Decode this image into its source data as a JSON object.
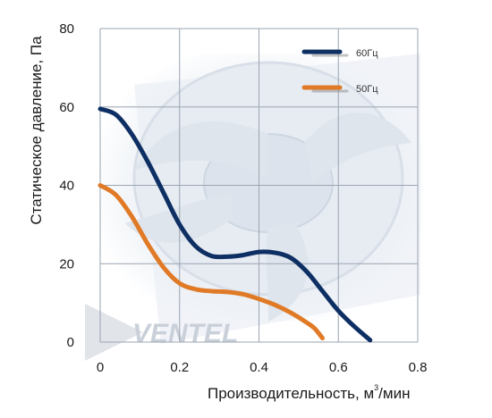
{
  "chart_data": {
    "type": "line",
    "xlabel": "Производительность, м",
    "xlabel_unit_sup": "3",
    "xlabel_suffix": "/мин",
    "ylabel": "Статическое давление, Па",
    "xlim": [
      0,
      0.8
    ],
    "ylim": [
      0,
      80
    ],
    "x_ticks": [
      {
        "value": 0,
        "label": "0"
      },
      {
        "value": 0.2,
        "label": "0.2"
      },
      {
        "value": 0.4,
        "label": "0.4"
      },
      {
        "value": 0.6,
        "label": "0.6"
      },
      {
        "value": 0.8,
        "label": "0.8"
      }
    ],
    "y_ticks": [
      {
        "value": 0,
        "label": "0"
      },
      {
        "value": 20,
        "label": "20"
      },
      {
        "value": 40,
        "label": "40"
      },
      {
        "value": 60,
        "label": "60"
      },
      {
        "value": 80,
        "label": "80"
      }
    ],
    "grid": true,
    "legend_position": "top-right",
    "series": [
      {
        "name": "60Гц",
        "color": "#0d2f63",
        "points": [
          [
            0,
            59.5
          ],
          [
            0.04,
            58
          ],
          [
            0.08,
            53
          ],
          [
            0.12,
            46
          ],
          [
            0.16,
            38
          ],
          [
            0.2,
            30
          ],
          [
            0.24,
            24.5
          ],
          [
            0.28,
            22
          ],
          [
            0.32,
            21.8
          ],
          [
            0.36,
            22.2
          ],
          [
            0.4,
            23
          ],
          [
            0.44,
            22.8
          ],
          [
            0.48,
            21.5
          ],
          [
            0.52,
            18
          ],
          [
            0.56,
            13
          ],
          [
            0.6,
            8
          ],
          [
            0.64,
            4
          ],
          [
            0.68,
            0.5
          ]
        ]
      },
      {
        "name": "50Гц",
        "color": "#e07a26",
        "points": [
          [
            0,
            40
          ],
          [
            0.04,
            37.5
          ],
          [
            0.08,
            32
          ],
          [
            0.12,
            25
          ],
          [
            0.16,
            19
          ],
          [
            0.2,
            15
          ],
          [
            0.24,
            13.5
          ],
          [
            0.28,
            13
          ],
          [
            0.32,
            12.8
          ],
          [
            0.36,
            12.2
          ],
          [
            0.4,
            11
          ],
          [
            0.44,
            9.5
          ],
          [
            0.48,
            7.5
          ],
          [
            0.52,
            5
          ],
          [
            0.54,
            3.5
          ],
          [
            0.56,
            1
          ]
        ]
      }
    ],
    "watermark": "VENTEL"
  }
}
